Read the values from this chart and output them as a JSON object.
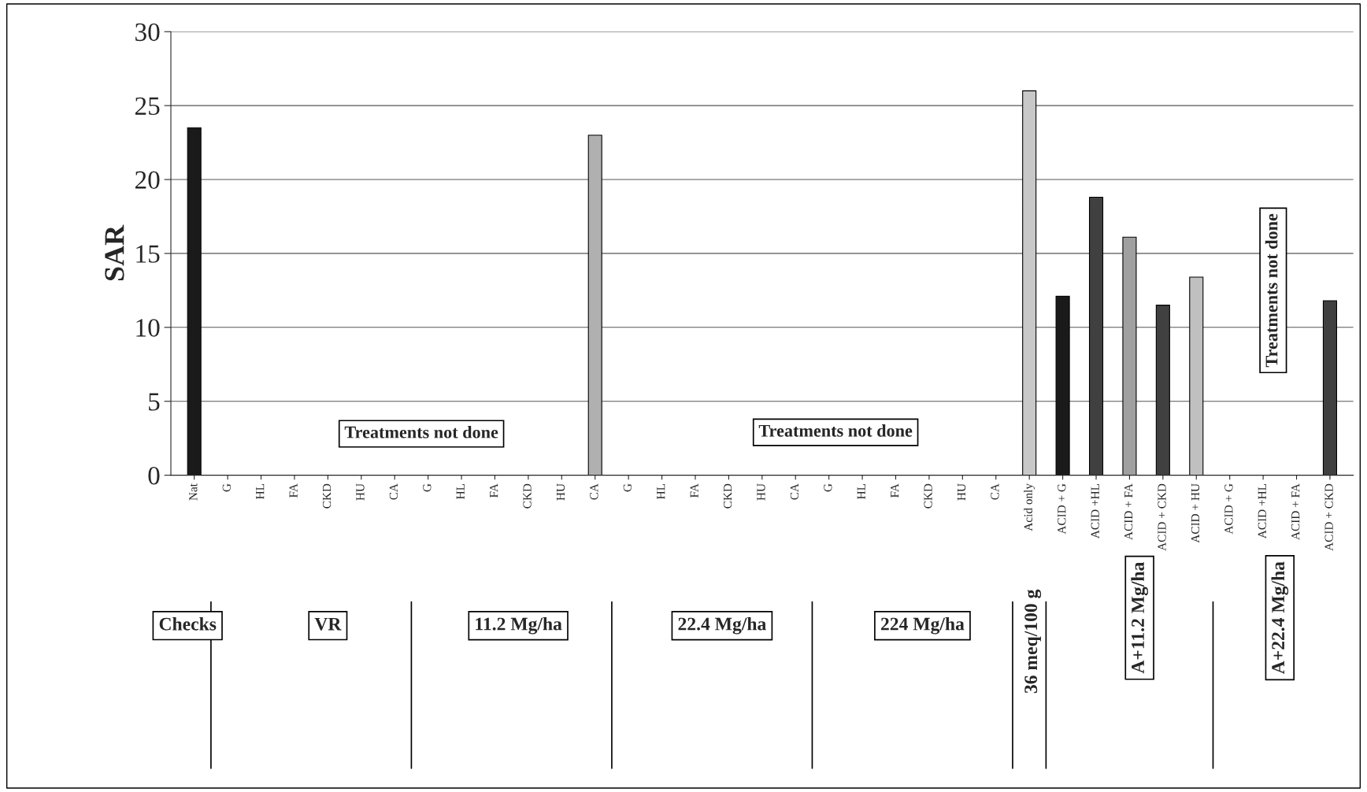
{
  "chart_data": {
    "type": "bar",
    "ylabel": "SAR",
    "categories": [
      "Nat",
      "G",
      "HL",
      "FA",
      "CKD",
      "HU",
      "CA",
      "G",
      "HL",
      "FA",
      "CKD",
      "HU",
      "CA",
      "G",
      "HL",
      "FA",
      "CKD",
      "HU",
      "CA",
      "G",
      "HL",
      "FA",
      "CKD",
      "HU",
      "CA",
      "Acid only",
      "ACID + G",
      "ACID +HL",
      "ACID + FA",
      "ACID + CKD",
      "ACID + HU",
      "ACID + G",
      "ACID +HL",
      "ACID + FA",
      "ACID + CKD"
    ],
    "values": [
      23.5,
      null,
      null,
      null,
      null,
      null,
      null,
      null,
      null,
      null,
      null,
      null,
      23,
      null,
      null,
      null,
      null,
      null,
      null,
      null,
      null,
      null,
      null,
      null,
      null,
      26,
      12.1,
      18.8,
      16.1,
      11.5,
      13.4,
      null,
      null,
      null,
      11.8
    ],
    "colors": [
      "#1a1a1a",
      null,
      null,
      null,
      null,
      null,
      null,
      null,
      null,
      null,
      null,
      null,
      "#b0b0b0",
      null,
      null,
      null,
      null,
      null,
      null,
      null,
      null,
      null,
      null,
      null,
      null,
      "#c8c8c8",
      "#1a1a1a",
      "#404040",
      "#a0a0a0",
      "#404040",
      "#c0c0c0",
      null,
      null,
      null,
      "#404040"
    ],
    "ylim": [
      0,
      30
    ],
    "yticks": [
      0,
      5,
      10,
      15,
      20,
      25,
      30
    ],
    "grid": "y",
    "annotations": [
      "Treatments not done",
      "Treatments not done",
      "Treatments not done",
      "Checks",
      "VR",
      "11.2 Mg/ha",
      "22.4 Mg/ha",
      "224 Mg/ha",
      "36 meq/100 g",
      "A+11.2 Mg/ha",
      "A+22.4 Mg/ha"
    ]
  }
}
